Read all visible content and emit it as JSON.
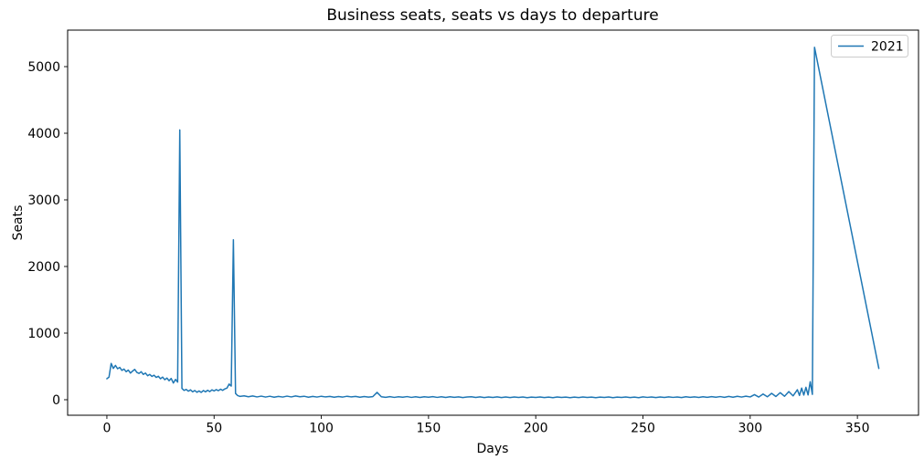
{
  "chart_data": {
    "type": "line",
    "title": "Business seats, seats vs days to departure",
    "xlabel": "Days",
    "ylabel": "Seats",
    "xlim": [
      -18.3,
      378.5
    ],
    "ylim": [
      -233,
      5548
    ],
    "xticks": [
      0,
      50,
      100,
      150,
      200,
      250,
      300,
      350
    ],
    "yticks": [
      0,
      1000,
      2000,
      3000,
      4000,
      5000
    ],
    "grid": false,
    "legend_position": "upper right",
    "line_color": "#1f77b4",
    "series": [
      {
        "name": "2021",
        "color": "#1f77b4",
        "points": [
          [
            0,
            315
          ],
          [
            1,
            340
          ],
          [
            2,
            545
          ],
          [
            3,
            470
          ],
          [
            4,
            515
          ],
          [
            5,
            465
          ],
          [
            6,
            485
          ],
          [
            7,
            440
          ],
          [
            8,
            460
          ],
          [
            9,
            420
          ],
          [
            10,
            445
          ],
          [
            11,
            400
          ],
          [
            12,
            430
          ],
          [
            13,
            455
          ],
          [
            14,
            410
          ],
          [
            15,
            395
          ],
          [
            16,
            420
          ],
          [
            17,
            380
          ],
          [
            18,
            400
          ],
          [
            19,
            360
          ],
          [
            20,
            380
          ],
          [
            21,
            350
          ],
          [
            22,
            368
          ],
          [
            23,
            335
          ],
          [
            24,
            352
          ],
          [
            25,
            315
          ],
          [
            26,
            340
          ],
          [
            27,
            300
          ],
          [
            28,
            325
          ],
          [
            29,
            285
          ],
          [
            30,
            320
          ],
          [
            31,
            250
          ],
          [
            32,
            305
          ],
          [
            33,
            265
          ],
          [
            34,
            4050
          ],
          [
            35,
            170
          ],
          [
            36,
            140
          ],
          [
            37,
            155
          ],
          [
            38,
            128
          ],
          [
            39,
            148
          ],
          [
            40,
            118
          ],
          [
            41,
            138
          ],
          [
            42,
            112
          ],
          [
            43,
            132
          ],
          [
            44,
            110
          ],
          [
            45,
            138
          ],
          [
            46,
            118
          ],
          [
            47,
            142
          ],
          [
            48,
            122
          ],
          [
            49,
            148
          ],
          [
            50,
            132
          ],
          [
            51,
            152
          ],
          [
            52,
            136
          ],
          [
            53,
            158
          ],
          [
            54,
            140
          ],
          [
            55,
            162
          ],
          [
            56,
            175
          ],
          [
            57,
            235
          ],
          [
            58,
            205
          ],
          [
            59,
            2400
          ],
          [
            60,
            95
          ],
          [
            61,
            62
          ],
          [
            62,
            50
          ],
          [
            64,
            58
          ],
          [
            66,
            44
          ],
          [
            68,
            56
          ],
          [
            70,
            42
          ],
          [
            72,
            54
          ],
          [
            74,
            40
          ],
          [
            76,
            52
          ],
          [
            78,
            38
          ],
          [
            80,
            50
          ],
          [
            82,
            40
          ],
          [
            84,
            54
          ],
          [
            86,
            42
          ],
          [
            88,
            56
          ],
          [
            90,
            44
          ],
          [
            92,
            52
          ],
          [
            94,
            38
          ],
          [
            96,
            50
          ],
          [
            98,
            40
          ],
          [
            100,
            52
          ],
          [
            102,
            42
          ],
          [
            104,
            50
          ],
          [
            106,
            38
          ],
          [
            108,
            48
          ],
          [
            110,
            40
          ],
          [
            112,
            52
          ],
          [
            114,
            42
          ],
          [
            116,
            50
          ],
          [
            118,
            38
          ],
          [
            120,
            48
          ],
          [
            122,
            40
          ],
          [
            124,
            46
          ],
          [
            126,
            110
          ],
          [
            128,
            44
          ],
          [
            130,
            36
          ],
          [
            132,
            46
          ],
          [
            134,
            35
          ],
          [
            136,
            45
          ],
          [
            138,
            37
          ],
          [
            140,
            47
          ],
          [
            142,
            35
          ],
          [
            144,
            44
          ],
          [
            146,
            34
          ],
          [
            148,
            45
          ],
          [
            150,
            38
          ],
          [
            152,
            46
          ],
          [
            154,
            35
          ],
          [
            156,
            44
          ],
          [
            158,
            34
          ],
          [
            160,
            44
          ],
          [
            162,
            36
          ],
          [
            164,
            43
          ],
          [
            166,
            33
          ],
          [
            168,
            41
          ],
          [
            170,
            45
          ],
          [
            172,
            34
          ],
          [
            174,
            43
          ],
          [
            176,
            33
          ],
          [
            178,
            41
          ],
          [
            180,
            34
          ],
          [
            182,
            43
          ],
          [
            184,
            33
          ],
          [
            186,
            41
          ],
          [
            188,
            32
          ],
          [
            190,
            41
          ],
          [
            192,
            34
          ],
          [
            194,
            41
          ],
          [
            196,
            31
          ],
          [
            198,
            39
          ],
          [
            200,
            34
          ],
          [
            202,
            41
          ],
          [
            204,
            32
          ],
          [
            206,
            39
          ],
          [
            208,
            31
          ],
          [
            210,
            41
          ],
          [
            212,
            34
          ],
          [
            214,
            39
          ],
          [
            216,
            31
          ],
          [
            218,
            39
          ],
          [
            220,
            33
          ],
          [
            222,
            41
          ],
          [
            224,
            34
          ],
          [
            226,
            39
          ],
          [
            228,
            31
          ],
          [
            230,
            39
          ],
          [
            232,
            34
          ],
          [
            234,
            41
          ],
          [
            236,
            31
          ],
          [
            238,
            39
          ],
          [
            240,
            34
          ],
          [
            242,
            41
          ],
          [
            244,
            32
          ],
          [
            246,
            39
          ],
          [
            248,
            31
          ],
          [
            250,
            43
          ],
          [
            252,
            35
          ],
          [
            254,
            41
          ],
          [
            256,
            32
          ],
          [
            258,
            41
          ],
          [
            260,
            34
          ],
          [
            262,
            43
          ],
          [
            264,
            35
          ],
          [
            266,
            41
          ],
          [
            268,
            33
          ],
          [
            270,
            45
          ],
          [
            272,
            36
          ],
          [
            274,
            43
          ],
          [
            276,
            34
          ],
          [
            278,
            45
          ],
          [
            280,
            36
          ],
          [
            282,
            46
          ],
          [
            284,
            38
          ],
          [
            286,
            47
          ],
          [
            288,
            36
          ],
          [
            290,
            49
          ],
          [
            292,
            38
          ],
          [
            294,
            51
          ],
          [
            296,
            40
          ],
          [
            298,
            53
          ],
          [
            300,
            42
          ],
          [
            302,
            76
          ],
          [
            304,
            40
          ],
          [
            306,
            86
          ],
          [
            308,
            44
          ],
          [
            310,
            96
          ],
          [
            312,
            48
          ],
          [
            314,
            106
          ],
          [
            316,
            52
          ],
          [
            318,
            122
          ],
          [
            320,
            58
          ],
          [
            322,
            150
          ],
          [
            323,
            64
          ],
          [
            324,
            175
          ],
          [
            325,
            70
          ],
          [
            326,
            186
          ],
          [
            327,
            72
          ],
          [
            328,
            270
          ],
          [
            329,
            80
          ],
          [
            330,
            5290
          ],
          [
            360,
            470
          ]
        ]
      }
    ]
  }
}
